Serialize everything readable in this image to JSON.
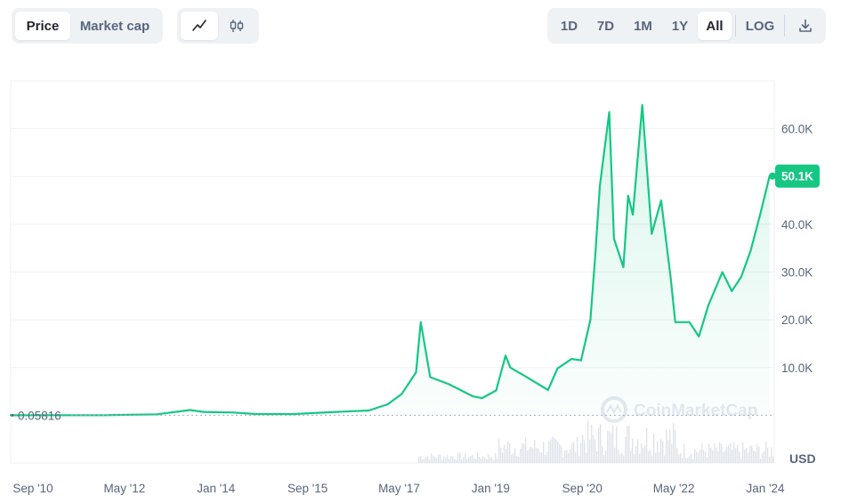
{
  "toolbar": {
    "metric_tabs": [
      {
        "label": "Price",
        "active": true
      },
      {
        "label": "Market cap",
        "active": false
      }
    ],
    "chart_type_icons": [
      {
        "icon": "line-chart-icon",
        "active": true
      },
      {
        "icon": "candlestick-icon",
        "active": false
      }
    ],
    "ranges": [
      {
        "label": "1D",
        "active": false
      },
      {
        "label": "7D",
        "active": false
      },
      {
        "label": "1M",
        "active": false
      },
      {
        "label": "1Y",
        "active": false
      },
      {
        "label": "All",
        "active": true
      }
    ],
    "log_label": "LOG",
    "download_icon": "download-icon"
  },
  "colors": {
    "line": "#16c784",
    "badge": "#16c784",
    "grid": "#eff2f5",
    "dotted_baseline": "#a6b0c3",
    "volume": "#e0e4ea"
  },
  "chart_data": {
    "type": "area",
    "currency_label": "USD",
    "y_ticks": [
      "60.0K",
      "50.0K",
      "40.0K",
      "30.0K",
      "20.0K",
      "10.0K"
    ],
    "x_ticks": [
      "Sep '10",
      "May '12",
      "Jan '14",
      "Sep '15",
      "May '17",
      "Jan '19",
      "Sep '20",
      "May '22",
      "Jan '24"
    ],
    "start_value_label": "0.05816",
    "current_value_label": "50.1K",
    "ylim": [
      -10000,
      70000
    ],
    "x": [
      "2010-09",
      "2011-06",
      "2012-05",
      "2013-04",
      "2013-11",
      "2014-02",
      "2014-08",
      "2015-01",
      "2015-09",
      "2016-06",
      "2017-01",
      "2017-05",
      "2017-08",
      "2017-11",
      "2017-12",
      "2018-02",
      "2018-06",
      "2018-11",
      "2019-01",
      "2019-04",
      "2019-06",
      "2019-07",
      "2019-10",
      "2020-03",
      "2020-05",
      "2020-08",
      "2020-10",
      "2020-12",
      "2021-01",
      "2021-02",
      "2021-04",
      "2021-05",
      "2021-07",
      "2021-08",
      "2021-09",
      "2021-11",
      "2022-01",
      "2022-03",
      "2022-05",
      "2022-06",
      "2022-09",
      "2022-11",
      "2023-01",
      "2023-04",
      "2023-06",
      "2023-08",
      "2023-10",
      "2023-12",
      "2024-01",
      "2024-02"
    ],
    "values": [
      0.06,
      20,
      5,
      200,
      1100,
      700,
      600,
      250,
      250,
      700,
      1000,
      2300,
      4500,
      9000,
      19500,
      8000,
      6500,
      4000,
      3600,
      5200,
      12500,
      10000,
      8300,
      5300,
      9800,
      11800,
      11500,
      20000,
      33000,
      48000,
      63500,
      37000,
      31000,
      46000,
      42000,
      65000,
      38000,
      45000,
      29000,
      19500,
      19500,
      16500,
      23000,
      30000,
      26000,
      29000,
      34500,
      42000,
      46000,
      50100
    ],
    "volume_note": "faint volume bars along the bottom"
  },
  "watermark": "CoinMarketCap"
}
